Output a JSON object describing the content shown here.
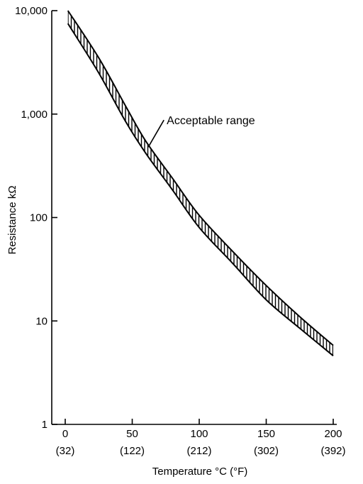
{
  "chart_data": {
    "type": "area",
    "title": "",
    "xlabel": "Temperature °C (°F)",
    "ylabel": "Resistance kΩ",
    "y_scale": "log",
    "xlim": [
      0,
      200
    ],
    "ylim": [
      1,
      10000
    ],
    "grid": false,
    "x_ticks": [
      {
        "value": 0,
        "label": "0",
        "sublabel": "(32)"
      },
      {
        "value": 50,
        "label": "50",
        "sublabel": "(122)"
      },
      {
        "value": 100,
        "label": "100",
        "sublabel": "(212)"
      },
      {
        "value": 150,
        "label": "150",
        "sublabel": "(302)"
      },
      {
        "value": 200,
        "label": "200",
        "sublabel": "(392)"
      }
    ],
    "y_ticks": [
      {
        "value": 1,
        "label": "1"
      },
      {
        "value": 10,
        "label": "10"
      },
      {
        "value": 100,
        "label": "100"
      },
      {
        "value": 1000,
        "label": "1,000"
      },
      {
        "value": 10000,
        "label": "10,000"
      }
    ],
    "band": {
      "label": "Acceptable range",
      "upper": [
        {
          "x": 2,
          "y": 10000
        },
        {
          "x": 25,
          "y": 3500
        },
        {
          "x": 45,
          "y": 1200
        },
        {
          "x": 60,
          "y": 550
        },
        {
          "x": 80,
          "y": 240
        },
        {
          "x": 100,
          "y": 105
        },
        {
          "x": 125,
          "y": 47
        },
        {
          "x": 150,
          "y": 22
        },
        {
          "x": 175,
          "y": 11
        },
        {
          "x": 200,
          "y": 5.8
        }
      ],
      "lower": [
        {
          "x": 2,
          "y": 7500
        },
        {
          "x": 25,
          "y": 2500
        },
        {
          "x": 45,
          "y": 850
        },
        {
          "x": 60,
          "y": 420
        },
        {
          "x": 80,
          "y": 185
        },
        {
          "x": 100,
          "y": 80
        },
        {
          "x": 125,
          "y": 36
        },
        {
          "x": 150,
          "y": 16
        },
        {
          "x": 175,
          "y": 8.5
        },
        {
          "x": 200,
          "y": 4.6
        }
      ]
    }
  }
}
